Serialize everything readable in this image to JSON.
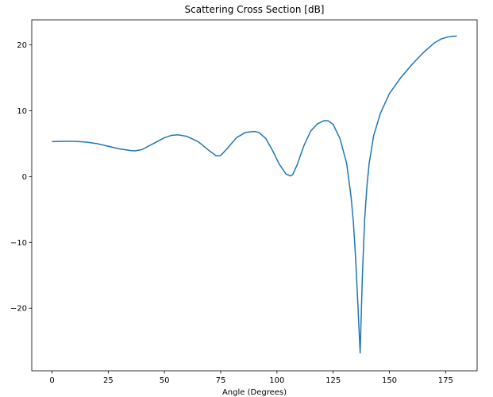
{
  "chart_data": {
    "type": "line",
    "title": "Scattering Cross Section [dB]",
    "xlabel": "Angle (Degrees)",
    "ylabel": "",
    "xlim": [
      -9,
      189
    ],
    "ylim": [
      -29.5,
      23.8
    ],
    "x_ticks": [
      0,
      25,
      50,
      75,
      100,
      125,
      150,
      175
    ],
    "y_ticks": [
      -20,
      -10,
      0,
      10,
      20
    ],
    "grid": false,
    "colors": {
      "line": "#1f77b4",
      "frame": "#000000"
    },
    "series": [
      {
        "x": [
          0,
          5,
          10,
          15,
          20,
          25,
          30,
          35,
          37,
          40,
          45,
          50,
          53,
          56,
          60,
          65,
          70,
          73,
          75,
          78,
          82,
          86,
          90,
          92,
          95,
          98,
          101,
          104,
          106,
          107,
          109,
          112,
          115,
          118,
          121,
          123,
          125,
          128,
          131,
          133,
          134,
          135,
          136,
          137,
          138,
          139,
          140,
          141,
          143,
          146,
          150,
          155,
          160,
          165,
          170,
          173,
          176,
          178,
          180
        ],
        "y": [
          5.3,
          5.35,
          5.35,
          5.25,
          5.0,
          4.6,
          4.2,
          3.95,
          3.9,
          4.1,
          5.0,
          5.9,
          6.25,
          6.35,
          6.1,
          5.3,
          3.9,
          3.15,
          3.2,
          4.3,
          5.9,
          6.7,
          6.85,
          6.7,
          5.8,
          4.0,
          1.9,
          0.4,
          0.1,
          0.3,
          1.8,
          4.7,
          6.9,
          8.0,
          8.5,
          8.45,
          7.9,
          5.8,
          2.0,
          -3.2,
          -7.0,
          -12.5,
          -19.5,
          -26.8,
          -15.0,
          -6.5,
          -1.5,
          2.0,
          6.2,
          9.6,
          12.6,
          15.0,
          17.0,
          18.8,
          20.3,
          20.9,
          21.2,
          21.3,
          21.35
        ]
      }
    ]
  }
}
